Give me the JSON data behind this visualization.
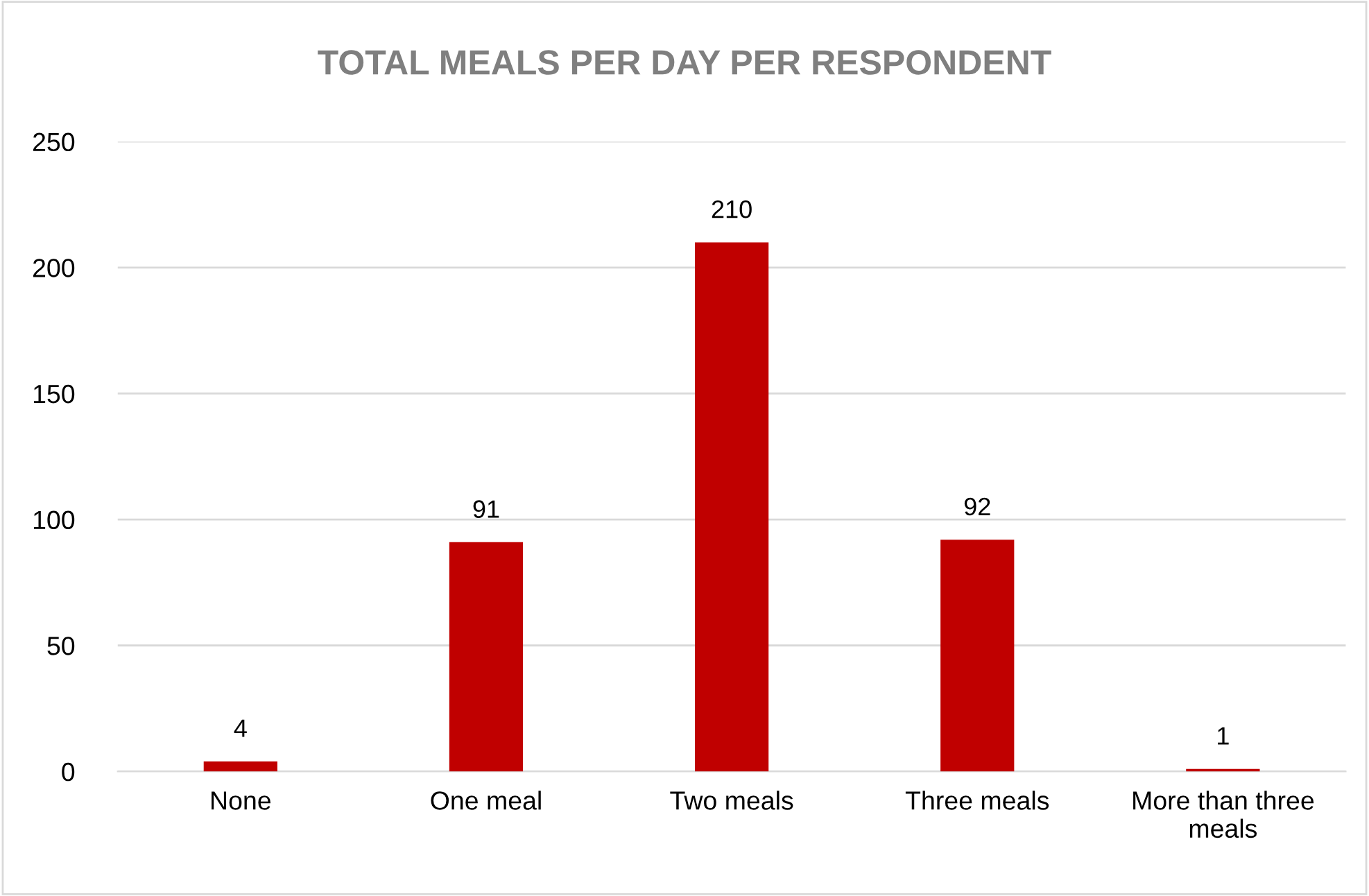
{
  "chart_data": {
    "type": "bar",
    "title": "TOTAL MEALS PER DAY PER RESPONDENT",
    "categories": [
      "None",
      "One meal",
      "Two meals",
      "Three meals",
      "More than three meals"
    ],
    "values": [
      4,
      91,
      210,
      92,
      1
    ],
    "color": "#c00000",
    "ylim": [
      0,
      250
    ],
    "yticks": [
      0,
      50,
      100,
      150,
      200,
      250
    ],
    "grid": "y",
    "data_labels": true
  }
}
